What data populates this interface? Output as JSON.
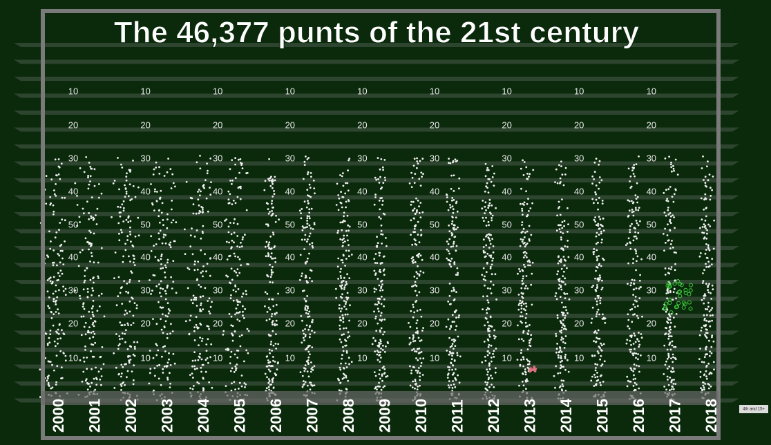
{
  "title": "The 46,377 punts of the 21st century",
  "years": [
    "2000",
    "2001",
    "2002",
    "2003",
    "2004",
    "2005",
    "2006",
    "2007",
    "2008",
    "2009",
    "2010",
    "2011",
    "2012",
    "2013",
    "2014",
    "2015",
    "2016",
    "2017",
    "2018"
  ],
  "yard_labels": [
    "10",
    "20",
    "30",
    "40",
    "50",
    "40",
    "30",
    "20",
    "10"
  ],
  "legend": "4th and 15+"
}
